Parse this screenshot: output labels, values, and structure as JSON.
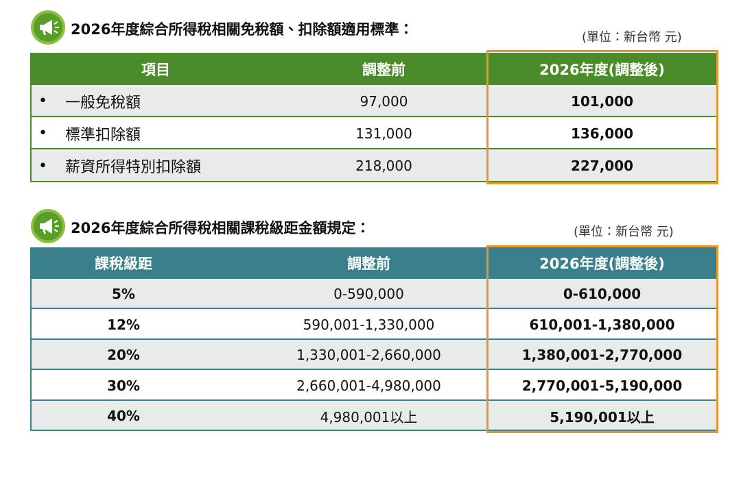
{
  "sections": [
    {
      "title": "2026年度綜合所得稅相關免稅額、扣除額適用標準：",
      "unit": "(單位：新台幣 元)",
      "header": [
        "項目",
        "調整前",
        "2026年度(調整後)"
      ],
      "rows": [
        [
          "一般免稅額",
          "97,000",
          "101,000"
        ],
        [
          "標準扣除額",
          "131,000",
          "136,000"
        ],
        [
          "薪資所得特別扣除額",
          "218,000",
          "227,000"
        ]
      ]
    },
    {
      "title": "2026年度綜合所得稅相關課稅級距金額規定：",
      "unit": "(單位：新台幣 元)",
      "header": [
        "課稅級距",
        "調整前",
        "2026年度(調整後)"
      ],
      "rows": [
        [
          "5%",
          "0-590,000",
          "0-610,000"
        ],
        [
          "12%",
          "590,001-1,330,000",
          "610,001-1,380,000"
        ],
        [
          "20%",
          "1,330,001-2,660,000",
          "1,380,001-2,770,000"
        ],
        [
          "30%",
          "2,660,001-4,980,000",
          "2,770,001-5,190,000"
        ],
        [
          "40%",
          "4,980,001以上",
          "5,190,001以上"
        ]
      ]
    }
  ]
}
